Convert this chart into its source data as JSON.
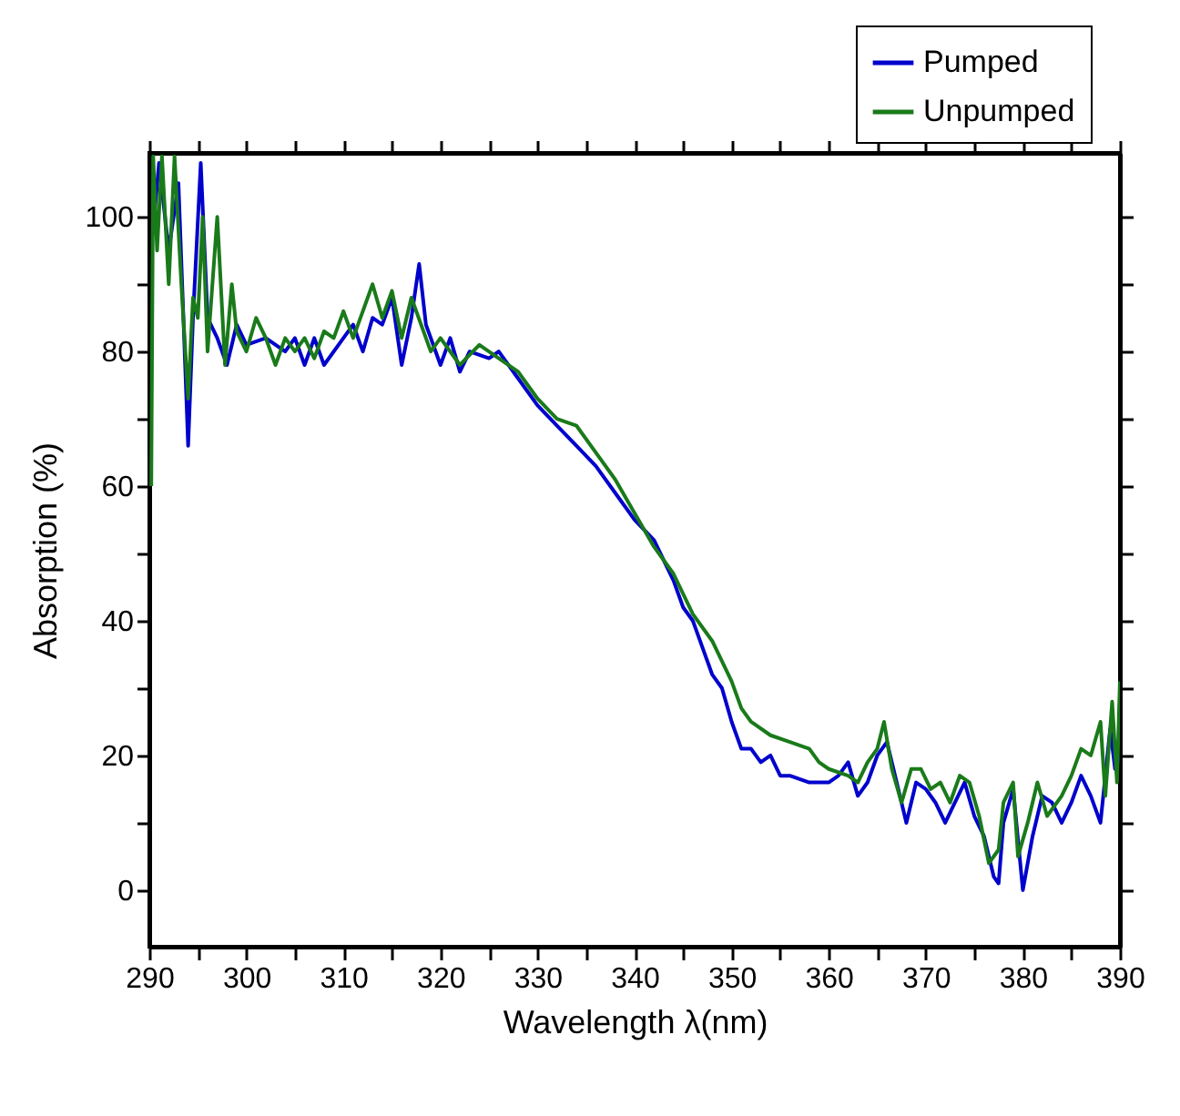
{
  "chart_data": {
    "type": "line",
    "xlabel": "Wavelength λ(nm)",
    "ylabel": "Absorption (%)",
    "xlim": [
      290,
      390
    ],
    "ylim": [
      -8.4,
      109.5
    ],
    "xticks": [
      290,
      {
        "value": 295,
        "label": null
      },
      300,
      {
        "value": 305,
        "label": null
      },
      310,
      {
        "value": 315,
        "label": null
      },
      320,
      {
        "value": 325,
        "label": null
      },
      330,
      {
        "value": 335,
        "label": null
      },
      340,
      {
        "value": 345,
        "label": null
      },
      350,
      {
        "value": 355,
        "label": null
      },
      360,
      {
        "value": 365,
        "label": null
      },
      370,
      {
        "value": 375,
        "label": null
      },
      380,
      {
        "value": 385,
        "label": null
      },
      390
    ],
    "yticks": [
      0,
      {
        "value": 10,
        "label": null
      },
      20,
      {
        "value": 30,
        "label": null
      },
      40,
      {
        "value": 50,
        "label": null
      },
      60,
      {
        "value": 70,
        "label": null
      },
      80,
      {
        "value": 90,
        "label": null
      },
      100
    ],
    "legend": "top right",
    "series": [
      {
        "name": "Pumped",
        "color": "#0000cc",
        "x": [
          290.5,
          291,
          292,
          293,
          294,
          294.5,
          295.3,
          296,
          297,
          298,
          299,
          300,
          302,
          304,
          305,
          306,
          307,
          308,
          310,
          311,
          312,
          313,
          314,
          315,
          316,
          317,
          317.8,
          318.5,
          320,
          321,
          322,
          323,
          325,
          326,
          328,
          330,
          332,
          334,
          336,
          338,
          340,
          342,
          344,
          345,
          346,
          347,
          348,
          349,
          350,
          351,
          352,
          353,
          354,
          355,
          356,
          358,
          360,
          361,
          362,
          363,
          364,
          365,
          366,
          367,
          368,
          369,
          370,
          371,
          372,
          373,
          374,
          375,
          376,
          377,
          377.5,
          378,
          379,
          380,
          381,
          382,
          383,
          384,
          385,
          386,
          387,
          388,
          389,
          389.5,
          390
        ],
        "values": [
          100,
          108,
          95,
          105,
          66,
          85,
          108,
          85,
          82,
          78,
          84,
          81,
          82,
          80,
          82,
          78,
          82,
          78,
          82,
          84,
          80,
          85,
          84,
          88,
          78,
          85,
          93,
          84,
          78,
          82,
          77,
          80,
          79,
          80,
          76,
          72,
          69,
          66,
          63,
          59,
          55,
          52,
          46,
          42,
          40,
          36,
          32,
          30,
          25,
          21,
          21,
          19,
          20,
          17,
          17,
          16,
          16,
          17,
          19,
          14,
          16,
          20,
          22,
          16,
          10,
          16,
          15,
          13,
          10,
          13,
          16,
          11,
          8,
          2,
          1,
          10,
          15,
          0,
          8,
          14,
          13,
          10,
          13,
          17,
          14,
          10,
          24,
          18,
          20
        ]
      },
      {
        "name": "Unpumped",
        "color": "#1a7a1a",
        "x": [
          290.2,
          290.4,
          290.8,
          291.3,
          292,
          292.6,
          293.3,
          294,
          294.5,
          295,
          295.5,
          296,
          297,
          297.8,
          298.5,
          299,
          300,
          301,
          302,
          303,
          304,
          305,
          306,
          307,
          308,
          309,
          310,
          311,
          312,
          313,
          314,
          315,
          316,
          317,
          318,
          319,
          320,
          322,
          324,
          326,
          328,
          330,
          332,
          334,
          336,
          338,
          340,
          342,
          344,
          346,
          348,
          349,
          350,
          351,
          352,
          354,
          356,
          358,
          359,
          360,
          362,
          363,
          364,
          365,
          365.7,
          366.5,
          367.5,
          368.5,
          369.5,
          370.5,
          371.5,
          372.5,
          373.5,
          374.5,
          375.5,
          376.5,
          377.5,
          378,
          379,
          379.5,
          380.5,
          381.5,
          382.5,
          384,
          385,
          386,
          387,
          388,
          388.5,
          389.2,
          389.7,
          390
        ],
        "values": [
          60,
          109,
          95,
          109,
          90,
          109,
          90,
          73,
          88,
          85,
          100,
          80,
          100,
          78,
          90,
          83,
          80,
          85,
          82,
          78,
          82,
          80,
          82,
          79,
          83,
          82,
          86,
          82,
          86,
          90,
          85,
          89,
          82,
          88,
          84,
          80,
          82,
          78,
          81,
          79,
          77,
          73,
          70,
          69,
          65,
          61,
          56,
          51,
          47,
          41,
          37,
          34,
          31,
          27,
          25,
          23,
          22,
          21,
          19,
          18,
          17,
          16,
          19,
          21,
          25,
          18,
          13,
          18,
          18,
          15,
          16,
          13,
          17,
          16,
          11,
          4,
          6,
          13,
          16,
          5,
          10,
          16,
          11,
          14,
          17,
          21,
          20,
          25,
          14,
          28,
          16,
          31
        ]
      }
    ]
  }
}
